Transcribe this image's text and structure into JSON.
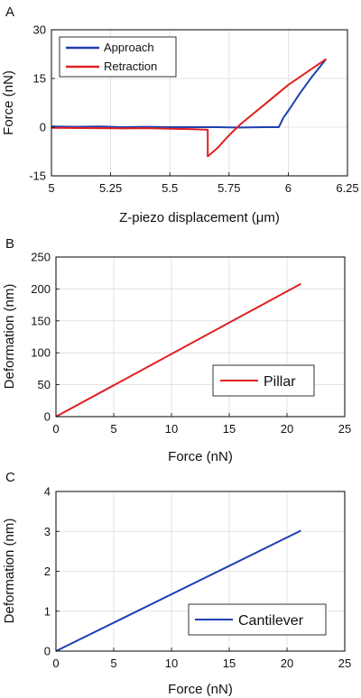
{
  "chart_data": [
    {
      "panel": "A",
      "type": "line",
      "xlabel": "Z-piezo displacement (μm)",
      "ylabel": "Force (nN)",
      "xlim": [
        5,
        6.25
      ],
      "ylim": [
        -15,
        30
      ],
      "xticks": [
        "5",
        "5.25",
        "5.5",
        "5.75",
        "6",
        "6.25"
      ],
      "yticks": [
        "-15",
        "0",
        "15",
        "30"
      ],
      "grid": true,
      "legend": "top-left",
      "series": [
        {
          "name": "Approach",
          "color": "#1f3fb0",
          "x": [
            5.0,
            5.1,
            5.2,
            5.3,
            5.4,
            5.5,
            5.6,
            5.7,
            5.8,
            5.9,
            5.96,
            5.98,
            6.0,
            6.05,
            6.1,
            6.16
          ],
          "y": [
            0.2,
            0.1,
            0.2,
            0.0,
            0.1,
            0.0,
            0.0,
            0.0,
            -0.1,
            0.0,
            0.0,
            3.0,
            5.0,
            10.5,
            15.5,
            21.0
          ]
        },
        {
          "name": "Retraction",
          "color": "#e02020",
          "x": [
            5.0,
            5.2,
            5.3,
            5.4,
            5.5,
            5.6,
            5.66,
            5.66,
            5.7,
            5.75,
            5.8,
            5.9,
            6.0,
            6.1,
            6.16
          ],
          "y": [
            -0.2,
            -0.3,
            -0.4,
            -0.3,
            -0.5,
            -0.6,
            -0.8,
            -9.0,
            -6.5,
            -2.5,
            1.0,
            7.0,
            13.0,
            18.0,
            21.0
          ]
        }
      ]
    },
    {
      "panel": "B",
      "type": "line",
      "xlabel": "Force (nN)",
      "ylabel": "Deformation (nm)",
      "xlim": [
        0,
        25
      ],
      "ylim": [
        0,
        250
      ],
      "xticks": [
        "0",
        "5",
        "10",
        "15",
        "20",
        "25"
      ],
      "yticks": [
        "0",
        "50",
        "100",
        "150",
        "200",
        "250"
      ],
      "grid": true,
      "legend": "center-right",
      "series": [
        {
          "name": "Pillar",
          "color": "#e02020",
          "x": [
            0,
            21.2
          ],
          "y": [
            0,
            208
          ]
        }
      ]
    },
    {
      "panel": "C",
      "type": "line",
      "xlabel": "Force (nN)",
      "ylabel": "Deformation (nm)",
      "xlim": [
        0,
        25
      ],
      "ylim": [
        0,
        4
      ],
      "xticks": [
        "0",
        "5",
        "10",
        "15",
        "20",
        "25"
      ],
      "yticks": [
        "0",
        "1",
        "2",
        "3",
        "4"
      ],
      "grid": true,
      "legend": "center-right",
      "series": [
        {
          "name": "Cantilever",
          "color": "#1f3fb0",
          "x": [
            0,
            21.2
          ],
          "y": [
            0,
            3.02
          ]
        }
      ]
    }
  ]
}
